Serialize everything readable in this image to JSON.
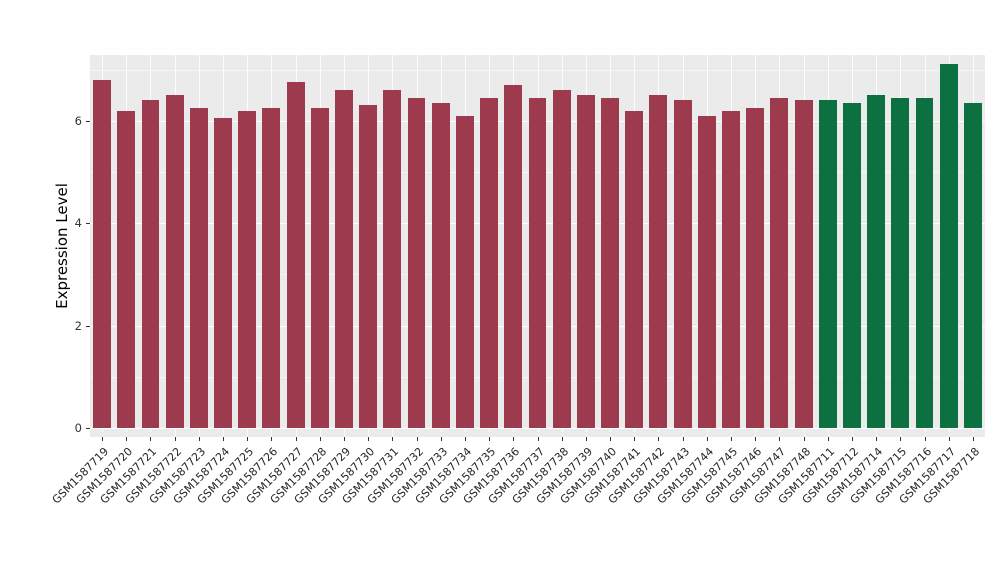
{
  "figure": {
    "background_color": "#FFFFFF",
    "panel_background_color": "#EBEBEB",
    "grid_color": "#FFFFFF",
    "axis_text_color": "#333333"
  },
  "chart_data": {
    "type": "bar",
    "title": "",
    "xlabel": "",
    "ylabel": "Expression Level",
    "ylim": [
      0,
      7.3
    ],
    "yticks": [
      0,
      2,
      4,
      6
    ],
    "grid": "on",
    "legend_position": "none",
    "categories": [
      "GSM1587719",
      "GSM1587720",
      "GSM1587721",
      "GSM1587722",
      "GSM1587723",
      "GSM1587724",
      "GSM1587725",
      "GSM1587726",
      "GSM1587727",
      "GSM1587728",
      "GSM1587729",
      "GSM1587730",
      "GSM1587731",
      "GSM1587732",
      "GSM1587733",
      "GSM1587734",
      "GSM1587735",
      "GSM1587736",
      "GSM1587737",
      "GSM1587738",
      "GSM1587739",
      "GSM1587740",
      "GSM1587741",
      "GSM1587742",
      "GSM1587743",
      "GSM1587744",
      "GSM1587745",
      "GSM1587746",
      "GSM1587747",
      "GSM1587748",
      "GSM1587711",
      "GSM1587712",
      "GSM1587714",
      "GSM1587715",
      "GSM1587716",
      "GSM1587717",
      "GSM1587718"
    ],
    "values": [
      6.8,
      6.2,
      6.4,
      6.5,
      6.25,
      6.05,
      6.2,
      6.25,
      6.75,
      6.25,
      6.6,
      6.3,
      6.6,
      6.45,
      6.35,
      6.1,
      6.45,
      6.7,
      6.45,
      6.6,
      6.5,
      6.45,
      6.2,
      6.5,
      6.4,
      6.1,
      6.2,
      6.25,
      6.45,
      6.4,
      6.4,
      6.35,
      6.5,
      6.45,
      6.45,
      7.1,
      6.35
    ],
    "bar_colors": [
      "#9D3A4D",
      "#9D3A4D",
      "#9D3A4D",
      "#9D3A4D",
      "#9D3A4D",
      "#9D3A4D",
      "#9D3A4D",
      "#9D3A4D",
      "#9D3A4D",
      "#9D3A4D",
      "#9D3A4D",
      "#9D3A4D",
      "#9D3A4D",
      "#9D3A4D",
      "#9D3A4D",
      "#9D3A4D",
      "#9D3A4D",
      "#9D3A4D",
      "#9D3A4D",
      "#9D3A4D",
      "#9D3A4D",
      "#9D3A4D",
      "#9D3A4D",
      "#9D3A4D",
      "#9D3A4D",
      "#9D3A4D",
      "#9D3A4D",
      "#9D3A4D",
      "#9D3A4D",
      "#9D3A4D",
      "#0C7040",
      "#0C7040",
      "#0C7040",
      "#0C7040",
      "#0C7040",
      "#0C7040",
      "#0C7040"
    ],
    "group_colors": {
      "maroon_group": "#9D3A4D",
      "green_group": "#0C7040"
    }
  }
}
